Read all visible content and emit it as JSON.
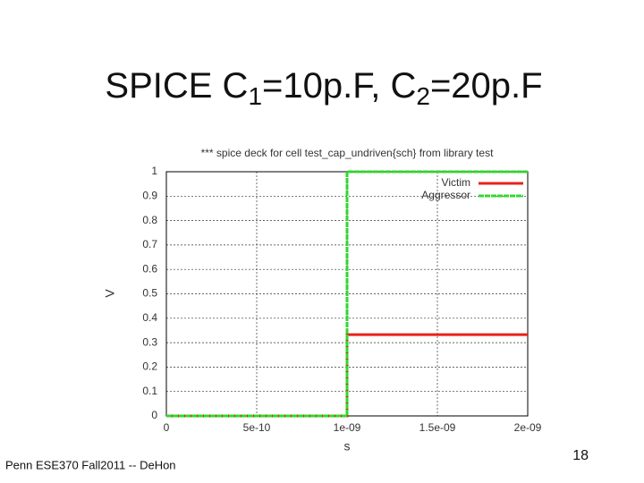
{
  "slide": {
    "title_parts": [
      "SPICE C",
      "1",
      "=10p.F, C",
      "2",
      "=20p.F"
    ],
    "footer": "Penn ESE370 Fall2011 -- DeHon",
    "page_number": 18
  },
  "chart_data": {
    "type": "line",
    "title": "*** spice deck for cell test_cap_undriven{sch} from library test",
    "x_label": "s",
    "y_label": "V",
    "series": [
      {
        "name": "Victim",
        "color": "#e8211c",
        "dashed": false,
        "x": [
          0,
          1e-09,
          1e-09,
          2e-09
        ],
        "values": [
          0,
          0,
          0.333,
          0.333
        ]
      },
      {
        "name": "Aggressor",
        "color": "#2fd92f",
        "dashed": true,
        "x": [
          0,
          1e-09,
          1e-09,
          2e-09
        ],
        "values": [
          0,
          0,
          1,
          1
        ]
      }
    ],
    "xlim": [
      0,
      2e-09
    ],
    "xticks": [
      0,
      5e-10,
      {
        "value": 1e-09,
        "label": "1e-09"
      },
      {
        "value": 1.5e-09,
        "label": "1.5e-09"
      },
      {
        "value": 2e-09,
        "label": "2e-09"
      }
    ],
    "ylim": [
      0,
      1
    ],
    "yticks": [
      0,
      0.1,
      0.2,
      0.3,
      0.4,
      0.5,
      0.6,
      0.7,
      0.8,
      0.9,
      1
    ],
    "grid": true,
    "legend": "top-right"
  }
}
